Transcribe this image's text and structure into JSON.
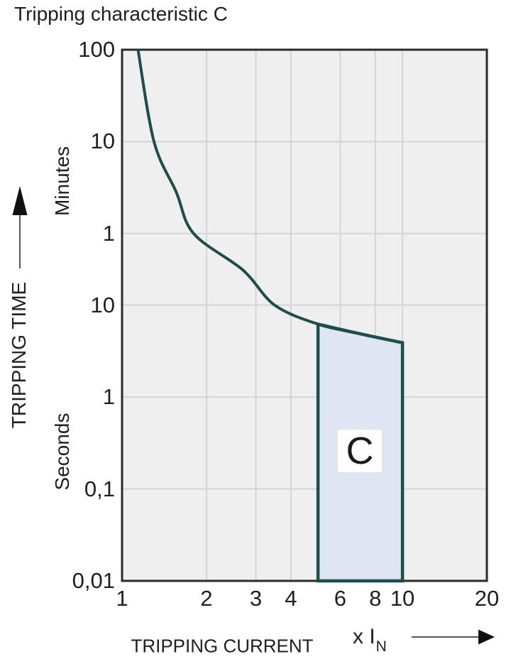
{
  "title": "Tripping characteristic C",
  "colors": {
    "curve": "#1c4f4b",
    "region_fill": "#dfe5f2",
    "region_border": "#1c4f4b",
    "plot_background": "#efefef",
    "gridline": "#d4d4d6",
    "frame": "#2b2b2b",
    "text": "#1f1f1e"
  },
  "chart_data": {
    "type": "line",
    "title": "Tripping characteristic C",
    "x_axis": {
      "label": "TRIPPING CURRENT",
      "unit_prefix": "x I",
      "unit_sub": "N",
      "scale": "log",
      "range": [
        1,
        20
      ],
      "ticks": [
        {
          "label": "1",
          "value": 1,
          "gridline": false
        },
        {
          "label": "2",
          "value": 2,
          "gridline": true
        },
        {
          "label": "3",
          "value": 3,
          "gridline": true
        },
        {
          "label": "4",
          "value": 4,
          "gridline": true
        },
        {
          "label": "6",
          "value": 6,
          "gridline": true
        },
        {
          "label": "8",
          "value": 8,
          "gridline": true
        },
        {
          "label": "10",
          "value": 10,
          "gridline": true
        },
        {
          "label": "20",
          "value": 20,
          "gridline": false
        }
      ]
    },
    "y_axis": {
      "label": "TRIPPING TIME",
      "units_top": "Minutes",
      "units_bottom": "Seconds",
      "scale": "log",
      "range_seconds": [
        6000,
        0.01
      ],
      "ticks": [
        {
          "label": "100",
          "seconds": 6000,
          "unit": "minutes",
          "gridline": false
        },
        {
          "label": "10",
          "seconds": 600,
          "unit": "minutes",
          "gridline": true
        },
        {
          "label": "1",
          "seconds": 60,
          "unit": "minutes",
          "gridline": true
        },
        {
          "label": "10",
          "seconds": 10,
          "unit": "seconds",
          "gridline": true
        },
        {
          "label": "1",
          "seconds": 1,
          "unit": "seconds",
          "gridline": true
        },
        {
          "label": "0,1",
          "seconds": 0.1,
          "unit": "seconds",
          "gridline": true
        },
        {
          "label": "0,01",
          "seconds": 0.01,
          "unit": "seconds",
          "gridline": false
        }
      ]
    },
    "series": [
      {
        "name": "tripping-curve",
        "points_x_multiple_of_in": [
          1.14,
          1.3,
          1.56,
          1.8,
          2.7,
          3.5,
          5,
          7,
          10
        ],
        "points_t_seconds": [
          6000,
          600,
          170,
          60,
          24,
          10,
          6.2,
          4.9,
          3.9
        ]
      }
    ],
    "region": {
      "label": "C",
      "x_from": 5,
      "x_to": 10,
      "t_bottom_seconds": 0.01,
      "top_edge_x": [
        5,
        7,
        10
      ],
      "top_edge_t_seconds": [
        6.2,
        4.9,
        3.9
      ]
    }
  }
}
